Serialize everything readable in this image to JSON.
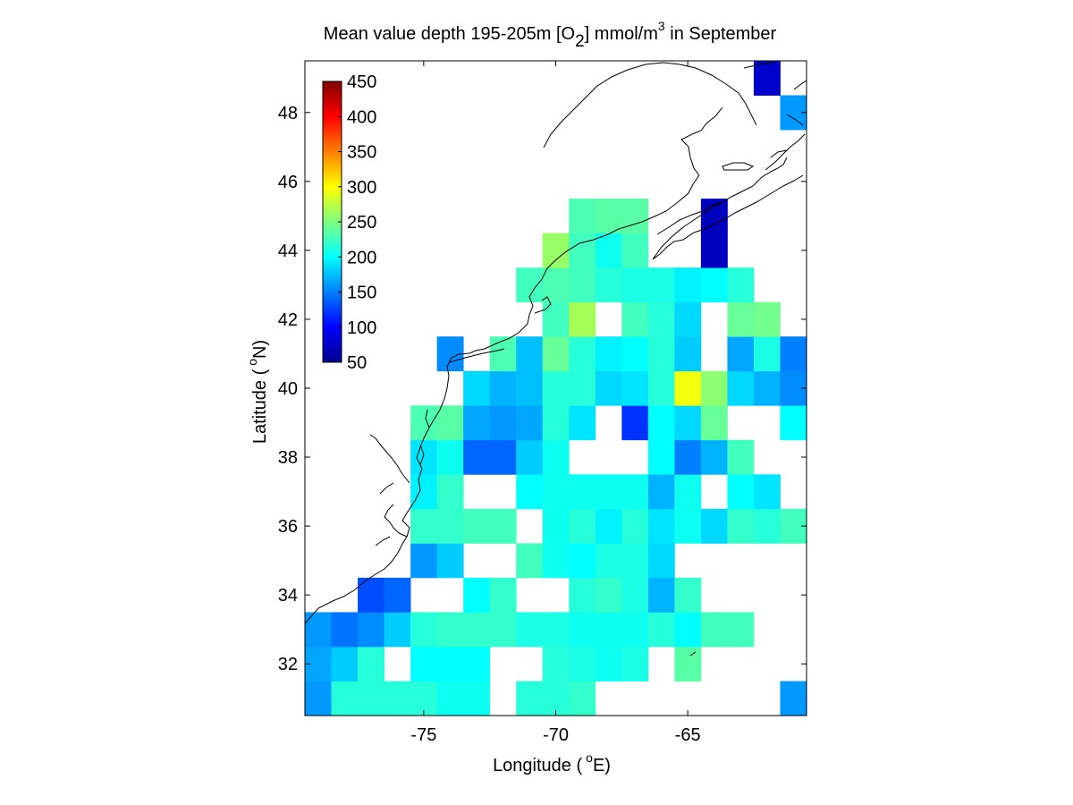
{
  "chart_data": {
    "type": "heatmap",
    "title": {
      "main": "Mean value depth 195-205m [O",
      "sub": "2",
      "unit_pre": "] mmol/m",
      "sup": "3",
      "tail": " in September"
    },
    "xlabel": {
      "text": "Longitude (",
      "sup": "o",
      "tail": "E)"
    },
    "ylabel": {
      "text": "Latitude (",
      "sup": "o",
      "tail": "N)"
    },
    "xlim": [
      -79.5,
      -60.5
    ],
    "ylim": [
      30.5,
      49.5
    ],
    "x_ticks": [
      -75,
      -70,
      -65
    ],
    "y_ticks": [
      32,
      34,
      36,
      38,
      40,
      42,
      44,
      46,
      48
    ],
    "colorbar": {
      "range": [
        50,
        450
      ],
      "ticks": [
        50,
        100,
        150,
        200,
        250,
        300,
        350,
        400,
        450
      ],
      "colormap": "jet",
      "placement": "upper-left inside"
    },
    "grid": false,
    "cell_size_deg": 1,
    "cells": [
      [
        -79,
        31,
        160
      ],
      [
        -78,
        31,
        215
      ],
      [
        -77,
        31,
        215
      ],
      [
        -76,
        31,
        215
      ],
      [
        -75,
        31,
        215
      ],
      [
        -74,
        31,
        205
      ],
      [
        -73,
        31,
        205
      ],
      [
        -71,
        31,
        215
      ],
      [
        -70,
        31,
        215
      ],
      [
        -69,
        31,
        220
      ],
      [
        -61,
        31,
        160
      ],
      [
        -79,
        32,
        165
      ],
      [
        -78,
        32,
        180
      ],
      [
        -77,
        32,
        215
      ],
      [
        -75,
        32,
        200
      ],
      [
        -74,
        32,
        200
      ],
      [
        -73,
        32,
        200
      ],
      [
        -70,
        32,
        215
      ],
      [
        -69,
        32,
        210
      ],
      [
        -68,
        32,
        205
      ],
      [
        -67,
        32,
        210
      ],
      [
        -65,
        32,
        235
      ],
      [
        -79,
        33,
        160
      ],
      [
        -78,
        33,
        145
      ],
      [
        -77,
        33,
        155
      ],
      [
        -76,
        33,
        180
      ],
      [
        -75,
        33,
        215
      ],
      [
        -74,
        33,
        220
      ],
      [
        -73,
        33,
        220
      ],
      [
        -72,
        33,
        220
      ],
      [
        -71,
        33,
        210
      ],
      [
        -70,
        33,
        210
      ],
      [
        -69,
        33,
        205
      ],
      [
        -68,
        33,
        205
      ],
      [
        -67,
        33,
        205
      ],
      [
        -66,
        33,
        215
      ],
      [
        -65,
        33,
        200
      ],
      [
        -64,
        33,
        225
      ],
      [
        -63,
        33,
        225
      ],
      [
        -77,
        34,
        130
      ],
      [
        -76,
        34,
        140
      ],
      [
        -73,
        34,
        200
      ],
      [
        -72,
        34,
        220
      ],
      [
        -69,
        34,
        215
      ],
      [
        -68,
        34,
        220
      ],
      [
        -67,
        34,
        210
      ],
      [
        -66,
        34,
        170
      ],
      [
        -65,
        34,
        220
      ],
      [
        -75,
        35,
        160
      ],
      [
        -74,
        35,
        180
      ],
      [
        -71,
        35,
        225
      ],
      [
        -70,
        35,
        205
      ],
      [
        -69,
        35,
        200
      ],
      [
        -68,
        35,
        210
      ],
      [
        -67,
        35,
        210
      ],
      [
        -66,
        35,
        185
      ],
      [
        -75,
        36,
        220
      ],
      [
        -74,
        36,
        220
      ],
      [
        -73,
        36,
        225
      ],
      [
        -72,
        36,
        225
      ],
      [
        -70,
        36,
        205
      ],
      [
        -69,
        36,
        215
      ],
      [
        -68,
        36,
        195
      ],
      [
        -67,
        36,
        215
      ],
      [
        -66,
        36,
        190
      ],
      [
        -65,
        36,
        205
      ],
      [
        -64,
        36,
        185
      ],
      [
        -63,
        36,
        220
      ],
      [
        -62,
        36,
        215
      ],
      [
        -61,
        36,
        225
      ],
      [
        -75,
        37,
        195
      ],
      [
        -74,
        37,
        220
      ],
      [
        -71,
        37,
        200
      ],
      [
        -70,
        37,
        205
      ],
      [
        -69,
        37,
        205
      ],
      [
        -68,
        37,
        205
      ],
      [
        -67,
        37,
        205
      ],
      [
        -66,
        37,
        170
      ],
      [
        -65,
        37,
        205
      ],
      [
        -63,
        37,
        200
      ],
      [
        -62,
        37,
        190
      ],
      [
        -75,
        38,
        190
      ],
      [
        -74,
        38,
        205
      ],
      [
        -73,
        38,
        140
      ],
      [
        -72,
        38,
        140
      ],
      [
        -71,
        38,
        180
      ],
      [
        -70,
        38,
        205
      ],
      [
        -66,
        38,
        200
      ],
      [
        -65,
        38,
        150
      ],
      [
        -64,
        38,
        170
      ],
      [
        -63,
        38,
        225
      ],
      [
        -75,
        39,
        230
      ],
      [
        -74,
        39,
        235
      ],
      [
        -73,
        39,
        165
      ],
      [
        -72,
        39,
        160
      ],
      [
        -71,
        39,
        165
      ],
      [
        -70,
        39,
        215
      ],
      [
        -69,
        39,
        190
      ],
      [
        -67,
        39,
        120
      ],
      [
        -66,
        39,
        200
      ],
      [
        -65,
        39,
        185
      ],
      [
        -64,
        39,
        240
      ],
      [
        -61,
        39,
        200
      ],
      [
        -73,
        40,
        185
      ],
      [
        -72,
        40,
        170
      ],
      [
        -71,
        40,
        175
      ],
      [
        -70,
        40,
        215
      ],
      [
        -69,
        40,
        215
      ],
      [
        -68,
        40,
        185
      ],
      [
        -67,
        40,
        190
      ],
      [
        -66,
        40,
        215
      ],
      [
        -65,
        40,
        295
      ],
      [
        -64,
        40,
        255
      ],
      [
        -63,
        40,
        185
      ],
      [
        -62,
        40,
        170
      ],
      [
        -61,
        40,
        155
      ],
      [
        -74,
        41,
        155
      ],
      [
        -72,
        41,
        230
      ],
      [
        -71,
        41,
        175
      ],
      [
        -70,
        41,
        240
      ],
      [
        -69,
        41,
        215
      ],
      [
        -68,
        41,
        195
      ],
      [
        -67,
        41,
        200
      ],
      [
        -66,
        41,
        215
      ],
      [
        -65,
        41,
        180
      ],
      [
        -63,
        41,
        165
      ],
      [
        -62,
        41,
        210
      ],
      [
        -61,
        41,
        150
      ],
      [
        -70,
        42,
        225
      ],
      [
        -69,
        42,
        265
      ],
      [
        -67,
        42,
        225
      ],
      [
        -66,
        42,
        215
      ],
      [
        -65,
        42,
        185
      ],
      [
        -63,
        42,
        240
      ],
      [
        -62,
        42,
        245
      ],
      [
        -71,
        43,
        225
      ],
      [
        -70,
        43,
        230
      ],
      [
        -69,
        43,
        225
      ],
      [
        -68,
        43,
        215
      ],
      [
        -67,
        43,
        210
      ],
      [
        -66,
        43,
        210
      ],
      [
        -65,
        43,
        195
      ],
      [
        -64,
        43,
        200
      ],
      [
        -63,
        43,
        215
      ],
      [
        -70,
        44,
        260
      ],
      [
        -69,
        44,
        225
      ],
      [
        -68,
        44,
        205
      ],
      [
        -67,
        44,
        225
      ],
      [
        -69,
        45,
        230
      ],
      [
        -68,
        45,
        235
      ],
      [
        -67,
        45,
        235
      ],
      [
        -64,
        45,
        75
      ],
      [
        -64,
        44,
        75
      ],
      [
        -61,
        48,
        160
      ],
      [
        -62,
        49,
        80
      ]
    ]
  }
}
